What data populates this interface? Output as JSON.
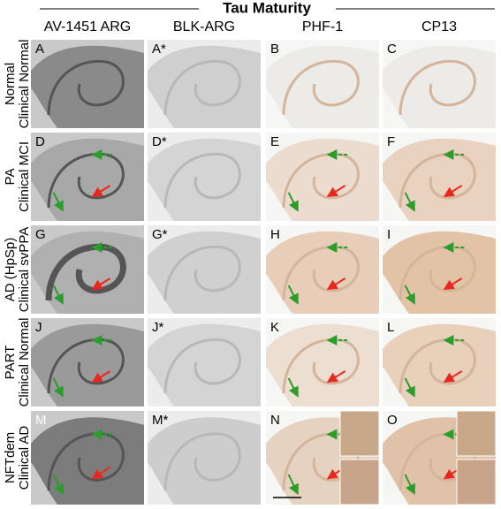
{
  "header": {
    "title": "Tau Maturity"
  },
  "columns": [
    "AV-1451 ARG",
    "BLK-ARG",
    "PHF-1",
    "CP13"
  ],
  "rows": [
    {
      "labels": [
        "Normal",
        "Clinical Normal"
      ],
      "panels": [
        "A",
        "A*",
        "B",
        "C"
      ]
    },
    {
      "labels": [
        "PA",
        "Clinical MCI"
      ],
      "panels": [
        "D",
        "D*",
        "E",
        "F"
      ]
    },
    {
      "labels": [
        "AD (HpSp)",
        "Clinical svPPA"
      ],
      "panels": [
        "G",
        "G*",
        "H",
        "I"
      ]
    },
    {
      "labels": [
        "PART",
        "Clinical Normal"
      ],
      "panels": [
        "J",
        "J*",
        "K",
        "L"
      ]
    },
    {
      "labels": [
        "NFTdem",
        "Clinical AD"
      ],
      "panels": [
        "M",
        "M*",
        "N",
        "O"
      ]
    }
  ]
}
